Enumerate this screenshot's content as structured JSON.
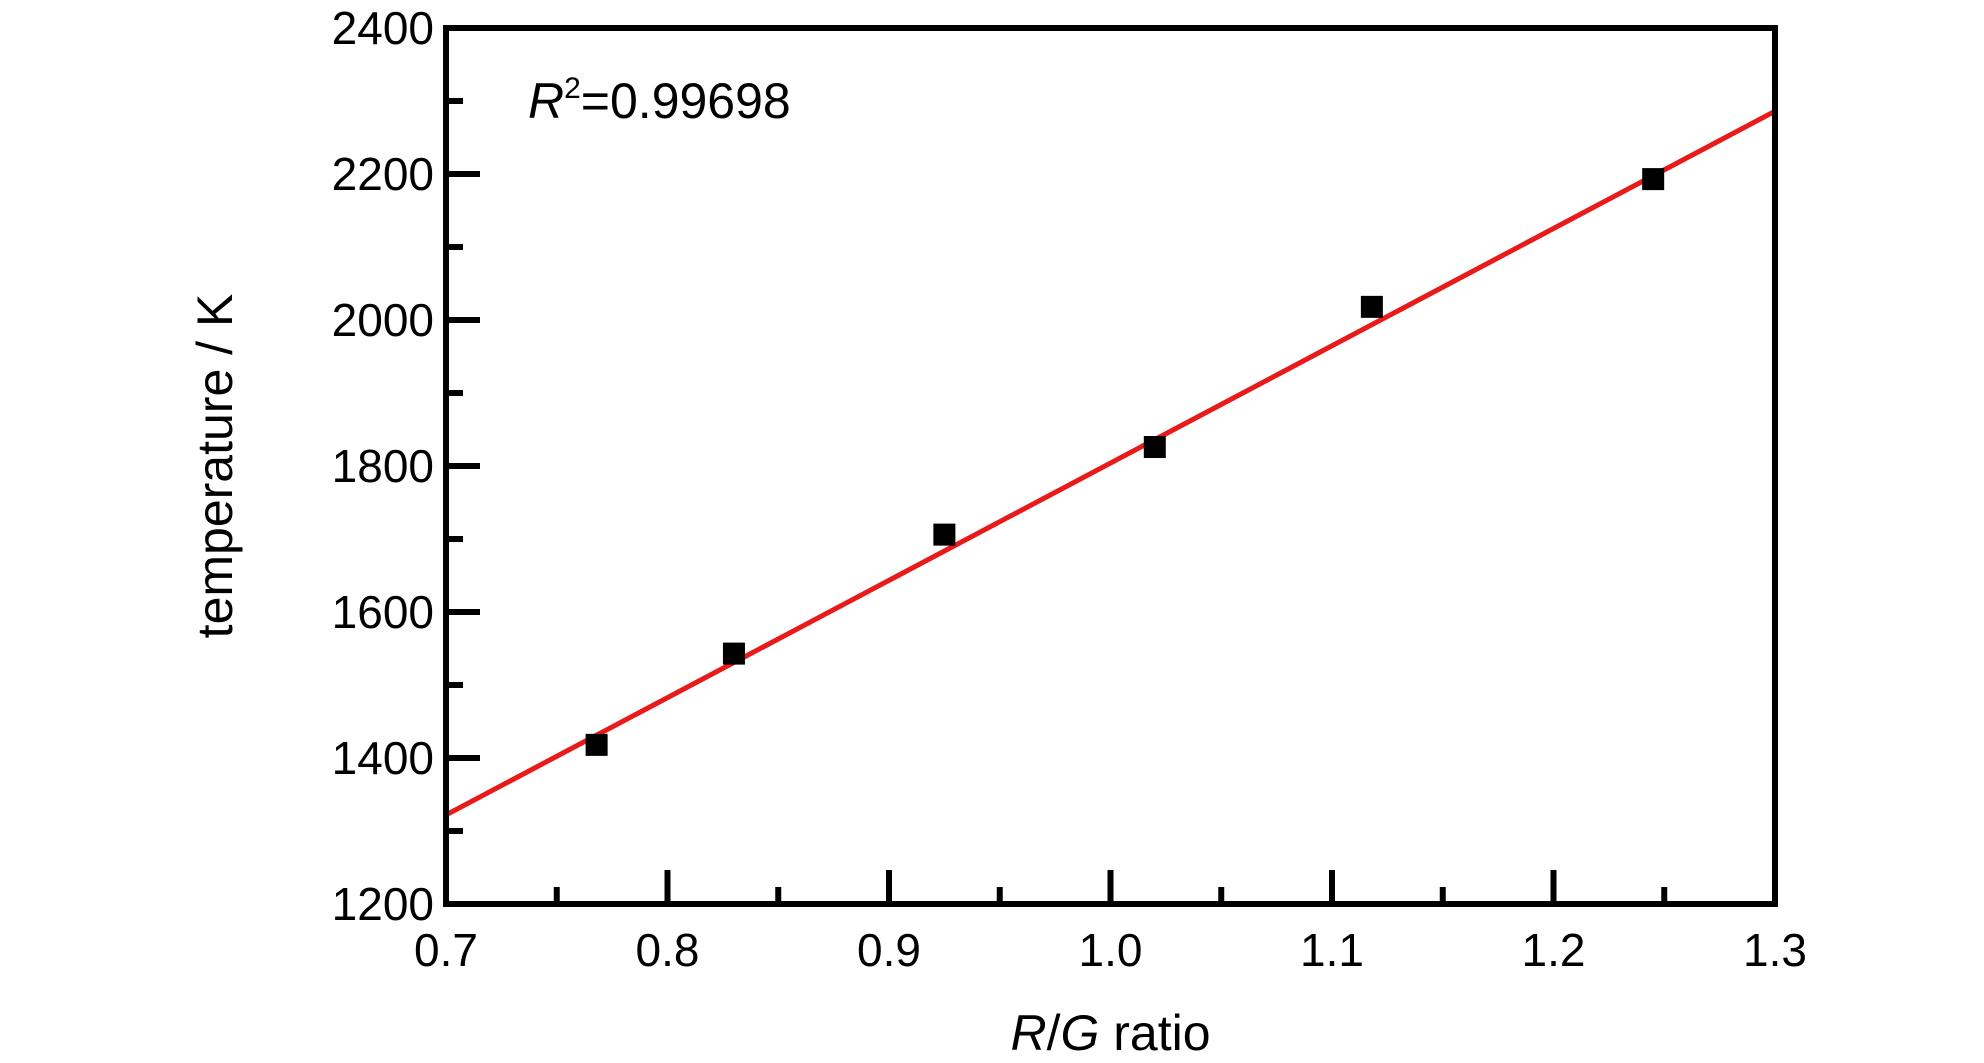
{
  "chart_data": {
    "type": "scatter",
    "title": "",
    "xlabel": {
      "italic_r": "R",
      "slash": "/",
      "italic_g": "G",
      "rest": " ratio"
    },
    "ylabel": "temperature / K",
    "xlim": [
      0.7,
      1.3
    ],
    "ylim": [
      1200,
      2400
    ],
    "x_ticks": [
      0.7,
      0.8,
      0.9,
      1.0,
      1.1,
      1.2,
      1.3
    ],
    "x_tick_labels": [
      "0.7",
      "0.8",
      "0.9",
      "1.0",
      "1.1",
      "1.2",
      "1.3"
    ],
    "y_ticks": [
      1200,
      1400,
      1600,
      1800,
      2000,
      2200,
      2400
    ],
    "y_tick_labels": [
      "1200",
      "1400",
      "1600",
      "1800",
      "2000",
      "2200",
      "2400"
    ],
    "x_minor_step": 0.05,
    "y_minor_step": 100,
    "grid": false,
    "legend": "none",
    "series": [
      {
        "marker": "square",
        "color": "#000000",
        "points": [
          {
            "x": 0.768,
            "y": 1418
          },
          {
            "x": 0.83,
            "y": 1543
          },
          {
            "x": 0.925,
            "y": 1706
          },
          {
            "x": 1.02,
            "y": 1826
          },
          {
            "x": 1.118,
            "y": 2018
          },
          {
            "x": 1.245,
            "y": 2193
          }
        ]
      }
    ],
    "fit_line": {
      "color": "#e81a1a",
      "x_start": 0.7,
      "y_start": 1322,
      "x_end": 1.3,
      "y_end": 2286
    },
    "annotation": {
      "r": "R",
      "sup": "2",
      "value": "=0.99698"
    }
  }
}
